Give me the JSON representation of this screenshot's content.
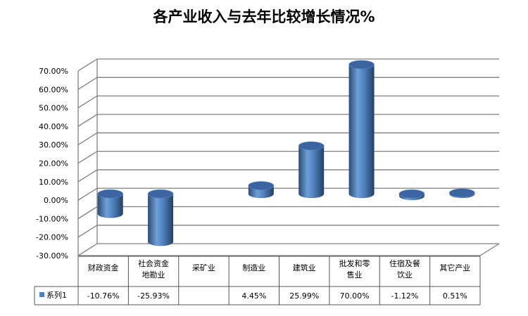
{
  "chart_data": {
    "type": "bar",
    "title": "各产业收入与去年比较增长情况%",
    "categories": [
      [
        "财政资金"
      ],
      [
        "社会资金",
        "地勘业"
      ],
      [
        "采矿业"
      ],
      [
        "制造业"
      ],
      [
        "建筑业"
      ],
      [
        "批发和零",
        "售业"
      ],
      [
        "住宿及餐",
        "饮业"
      ],
      [
        "其它产业"
      ]
    ],
    "series": [
      {
        "name": "系列1",
        "values": [
          -10.76,
          -25.93,
          null,
          4.45,
          25.99,
          70.0,
          -1.12,
          0.51
        ],
        "labels": [
          "-10.76%",
          "-25.93%",
          "",
          "4.45%",
          "25.99%",
          "70.00%",
          "-1.12%",
          "0.51%"
        ]
      }
    ],
    "ylim": [
      -30,
      70
    ],
    "yticks": [
      "-30.00%",
      "-20.00%",
      "-10.00%",
      "0.00%",
      "10.00%",
      "20.00%",
      "30.00%",
      "40.00%",
      "50.00%",
      "60.00%",
      "70.00%"
    ],
    "grid": true,
    "legend": "data-table-left",
    "colors": {
      "bar_light": "#6f9fd8",
      "bar_mid": "#4f81bd",
      "bar_dark": "#2c4d75",
      "bar_top": "#3b64a0",
      "grid": "#7f7f7f",
      "legend_key": "#4f81bd"
    }
  }
}
